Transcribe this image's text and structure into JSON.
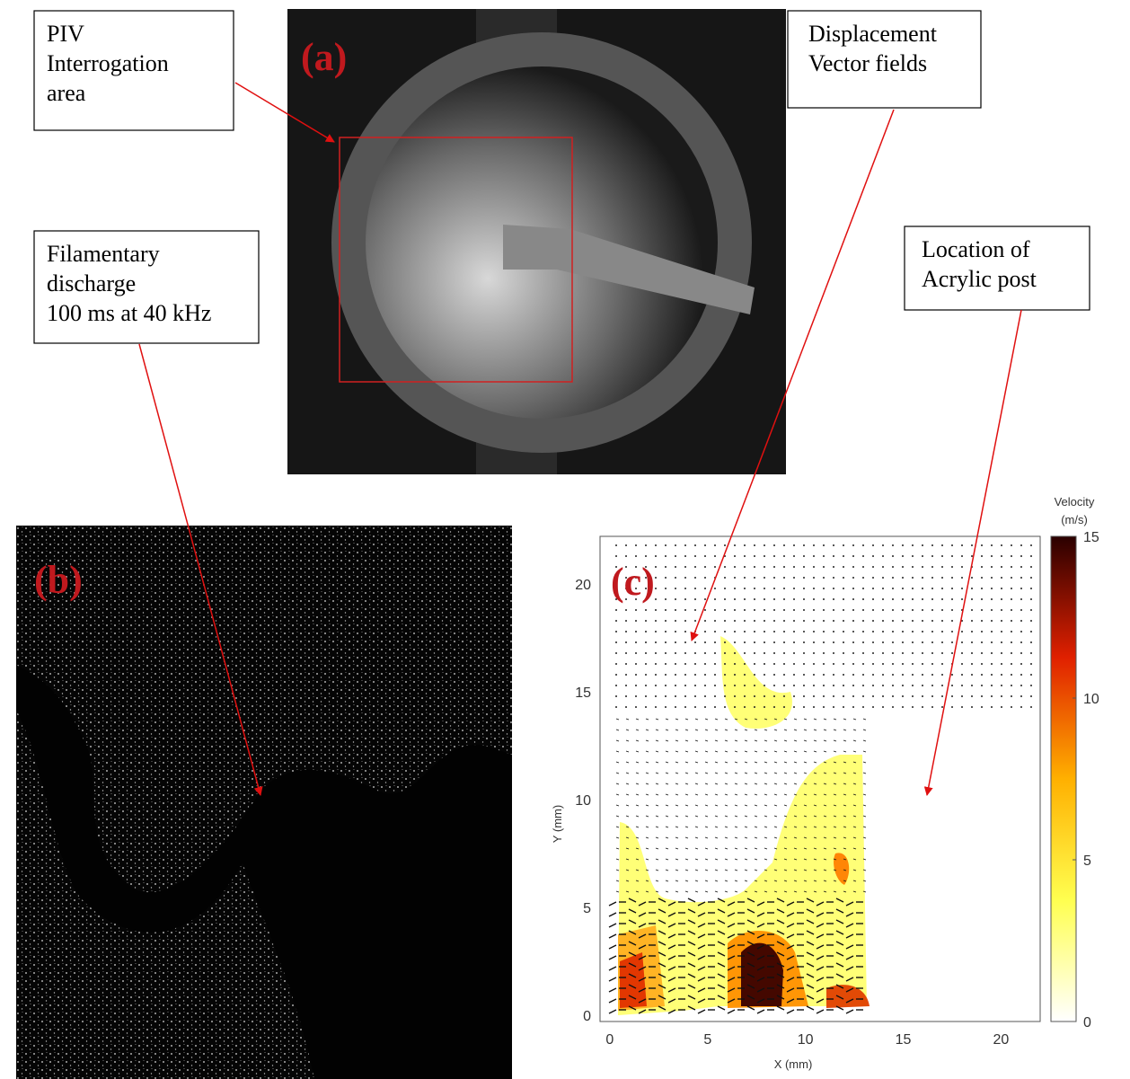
{
  "annotations": [
    {
      "lines": [
        "PIV",
        "Interrogation",
        "area"
      ]
    },
    {
      "lines": [
        "Displacement",
        "Vector fields"
      ]
    },
    {
      "lines": [
        "Filamentary",
        "discharge",
        "100 ms at 40 kHz"
      ]
    },
    {
      "lines": [
        "Location of",
        "Acrylic post"
      ]
    }
  ],
  "panels": {
    "a": {
      "label": "(a)"
    },
    "b": {
      "label": "(b)"
    }
  },
  "chart_data": {
    "type": "vector-field",
    "label": "(c)",
    "x_label": "X (mm)",
    "y_label": "Y (mm)",
    "xlim": [
      -0.5,
      22
    ],
    "ylim": [
      -0.3,
      22.2
    ],
    "xticks": [
      0,
      5,
      10,
      15,
      20
    ],
    "yticks": [
      0,
      5,
      10,
      15,
      20
    ],
    "colorbar": {
      "title": [
        "Velocity",
        "(m/s)"
      ],
      "lim": [
        0,
        15
      ],
      "ticks": [
        0,
        5,
        10,
        15
      ],
      "colormap": [
        "#ffffff",
        "#ffff50",
        "#ffb000",
        "#e02000",
        "#2a0000"
      ]
    }
  }
}
